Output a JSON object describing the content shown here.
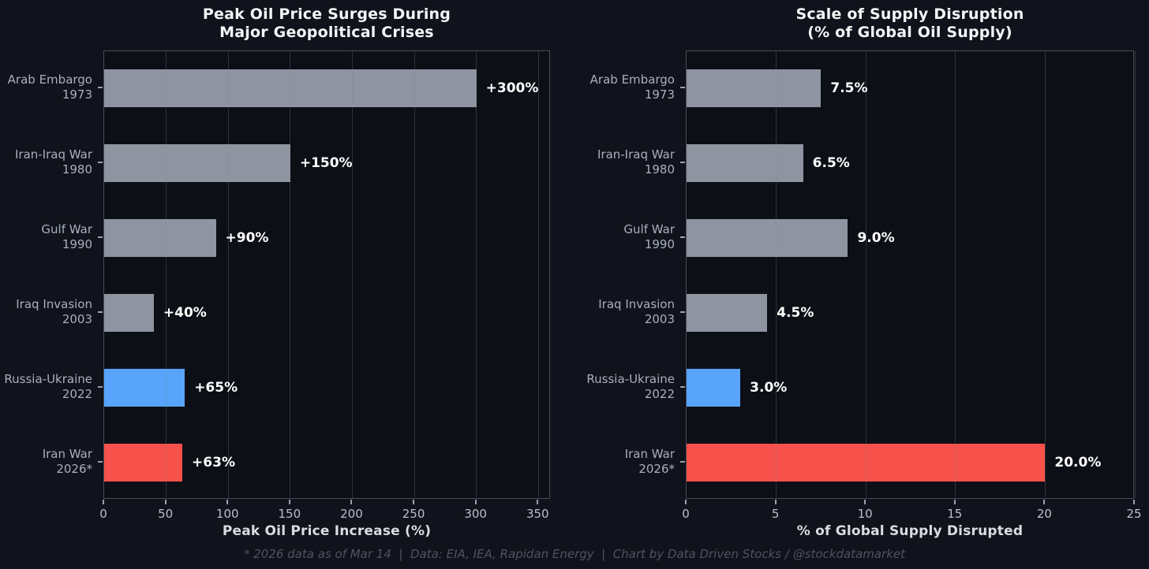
{
  "page": {
    "background": "#10131b",
    "plot_background": "#0c0f16"
  },
  "colors": {
    "gray": "#8e95a0",
    "blue": "#57a4fa",
    "red": "#f6514a",
    "grid": "rgba(125,133,148,0.30)",
    "spine": "#464c57",
    "title_text": "#f3f5f7",
    "tick_text": "#b9c0c9",
    "category_text": "#a9b0ba",
    "value_text": "#ffffff",
    "footer_text": "#4e545e"
  },
  "chart_data": [
    {
      "type": "bar",
      "orientation": "horizontal",
      "title_lines": [
        "Peak Oil Price Surges During",
        "Major Geopolitical Crises"
      ],
      "title": "Peak Oil Price Surges During Major Geopolitical Crises",
      "categories": [
        [
          "Arab Embargo",
          "1973"
        ],
        [
          "Iran-Iraq War",
          "1980"
        ],
        [
          "Gulf War",
          "1990"
        ],
        [
          "Iraq Invasion",
          "2003"
        ],
        [
          "Russia-Ukraine",
          "2022"
        ],
        [
          "Iran War",
          "2026*"
        ]
      ],
      "values": [
        300,
        150,
        90,
        40,
        65,
        63
      ],
      "value_labels": [
        "+300%",
        "+150%",
        "+90%",
        "+40%",
        "+65%",
        "+63%"
      ],
      "bar_colors": [
        "gray",
        "gray",
        "gray",
        "gray",
        "blue",
        "red"
      ],
      "xlabel": "Peak Oil Price Increase (%)",
      "ylabel": "",
      "xlim": [
        0,
        360
      ],
      "xticks": [
        0,
        50,
        100,
        150,
        200,
        250,
        300,
        350
      ],
      "grid": true,
      "legend": false
    },
    {
      "type": "bar",
      "orientation": "horizontal",
      "title_lines": [
        "Scale of Supply Disruption",
        "(% of Global Oil Supply)"
      ],
      "title": "Scale of Supply Disruption (% of Global Oil Supply)",
      "categories": [
        [
          "Arab Embargo",
          "1973"
        ],
        [
          "Iran-Iraq War",
          "1980"
        ],
        [
          "Gulf War",
          "1990"
        ],
        [
          "Iraq Invasion",
          "2003"
        ],
        [
          "Russia-Ukraine",
          "2022"
        ],
        [
          "Iran War",
          "2026*"
        ]
      ],
      "values": [
        7.5,
        6.5,
        9.0,
        4.5,
        3.0,
        20.0
      ],
      "value_labels": [
        "7.5%",
        "6.5%",
        "9.0%",
        "4.5%",
        "3.0%",
        "20.0%"
      ],
      "bar_colors": [
        "gray",
        "gray",
        "gray",
        "gray",
        "blue",
        "red"
      ],
      "xlabel": "% of Global Supply Disrupted",
      "ylabel": "",
      "xlim": [
        0,
        25
      ],
      "xticks": [
        0,
        5,
        10,
        15,
        20,
        25
      ],
      "grid": true,
      "legend": false
    }
  ],
  "footer": {
    "text": "* 2026 data as of Mar 14  |  Data: EIA, IEA, Rapidan Energy  |  Chart by Data Driven Stocks / @stockdatamarket"
  }
}
